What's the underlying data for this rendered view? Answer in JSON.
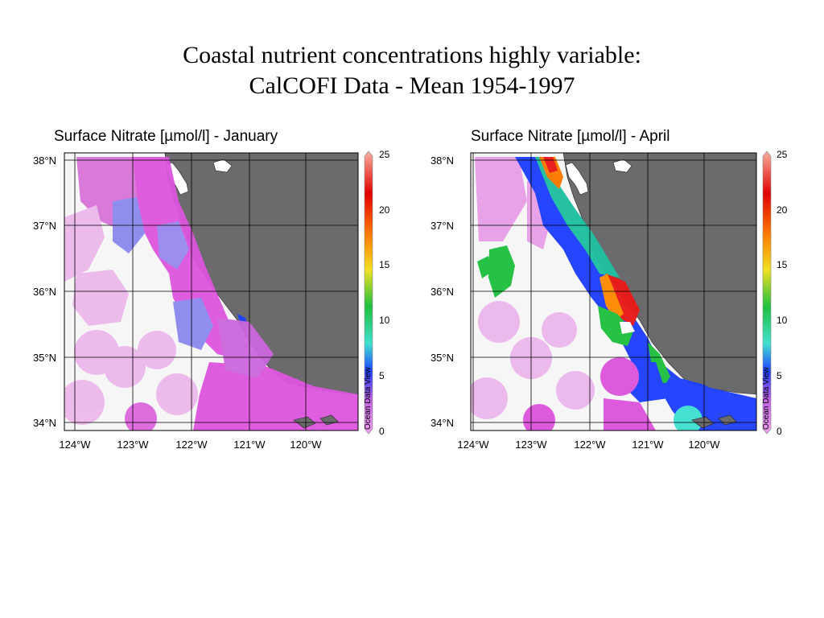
{
  "slide": {
    "title_line1": "Coastal nutrient concentrations highly variable:",
    "title_line2": "CalCOFI Data - Mean 1954-1997"
  },
  "maps": [
    {
      "title": "Surface Nitrate [µmol/l] - January",
      "lat_labels": [
        "38°N",
        "37°N",
        "36°N",
        "35°N",
        "34°N"
      ],
      "lon_labels": [
        "124°W",
        "123°W",
        "122°W",
        "121°W",
        "120°W"
      ],
      "colorbar_ticks": [
        "25",
        "20",
        "15",
        "10",
        "5",
        "0"
      ],
      "watermark": "Ocean Data View",
      "colors": {
        "land": "#6b6a6c",
        "dominant": "#dd55dd",
        "low": "#ecb8ec"
      }
    },
    {
      "title": "Surface Nitrate [µmol/l] - April",
      "lat_labels": [
        "38°N",
        "37°N",
        "36°N",
        "35°N",
        "34°N"
      ],
      "lon_labels": [
        "124°W",
        "123°W",
        "122°W",
        "121°W",
        "120°W"
      ],
      "colorbar_ticks": [
        "25",
        "20",
        "15",
        "10",
        "5",
        "0"
      ],
      "watermark": "Ocean Data View",
      "colors": {
        "land": "#6b6a6c",
        "upwelling_high": "#e81a1a",
        "upwelling_mid": "#1a3ee8",
        "mid": "#22c24a"
      }
    }
  ],
  "colorbar": {
    "stops": [
      "#f0a0f0",
      "#2040ff",
      "#40e0d0",
      "#20c040",
      "#f0e020",
      "#ff8000",
      "#e00000",
      "#f8b0a0"
    ]
  }
}
